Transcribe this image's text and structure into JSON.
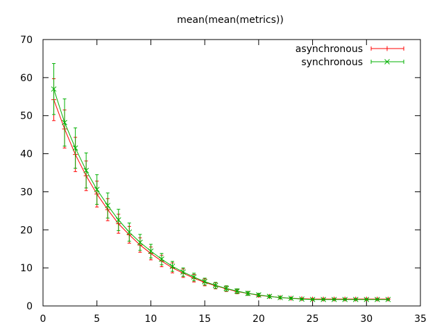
{
  "chart_data": {
    "type": "line",
    "title": "mean(mean(metrics))",
    "xlabel": "",
    "ylabel": "",
    "xlim": [
      0,
      35
    ],
    "ylim": [
      0,
      70
    ],
    "xticks": [
      0,
      5,
      10,
      15,
      20,
      25,
      30,
      35
    ],
    "yticks": [
      0,
      10,
      20,
      30,
      40,
      50,
      60,
      70
    ],
    "grid": false,
    "legend": "top-right",
    "x": [
      1,
      2,
      3,
      4,
      5,
      6,
      7,
      8,
      9,
      10,
      11,
      12,
      13,
      14,
      15,
      16,
      17,
      18,
      19,
      20,
      21,
      22,
      23,
      24,
      25,
      26,
      27,
      28,
      29,
      30,
      31,
      32
    ],
    "series": [
      {
        "name": "asynchronous",
        "color": "#ff0000",
        "marker": "plus",
        "values": [
          54.2,
          46.5,
          39.8,
          34.2,
          29.4,
          25.3,
          21.6,
          18.7,
          16.0,
          13.8,
          11.8,
          10.0,
          8.6,
          7.3,
          6.2,
          5.3,
          4.5,
          3.8,
          3.3,
          2.8,
          2.5,
          2.2,
          2.0,
          1.9,
          1.8,
          1.8,
          1.8,
          1.8,
          1.8,
          1.8,
          1.8,
          1.8
        ],
        "errors": [
          5.5,
          5.0,
          4.5,
          3.9,
          3.4,
          2.9,
          2.5,
          2.2,
          1.9,
          1.7,
          1.5,
          1.3,
          1.1,
          1.0,
          0.9,
          0.8,
          0.7,
          0.6,
          0.5,
          0.4,
          0.35,
          0.3,
          0.25,
          0.2,
          0.2,
          0.2,
          0.2,
          0.2,
          0.2,
          0.2,
          0.2,
          0.2
        ]
      },
      {
        "name": "synchronous",
        "color": "#00b000",
        "marker": "x",
        "values": [
          57.0,
          48.2,
          41.5,
          35.6,
          30.6,
          26.4,
          22.6,
          19.4,
          16.7,
          14.4,
          12.3,
          10.4,
          8.9,
          7.6,
          6.4,
          5.4,
          4.6,
          3.9,
          3.3,
          2.9,
          2.5,
          2.2,
          2.0,
          1.8,
          1.7,
          1.7,
          1.7,
          1.7,
          1.7,
          1.7,
          1.7,
          1.7
        ],
        "errors": [
          6.7,
          6.2,
          5.3,
          4.6,
          3.9,
          3.3,
          2.8,
          2.4,
          2.1,
          1.8,
          1.5,
          1.3,
          1.1,
          1.0,
          0.9,
          0.8,
          0.7,
          0.6,
          0.5,
          0.4,
          0.35,
          0.3,
          0.25,
          0.2,
          0.2,
          0.2,
          0.2,
          0.2,
          0.2,
          0.2,
          0.2,
          0.2
        ]
      }
    ]
  }
}
